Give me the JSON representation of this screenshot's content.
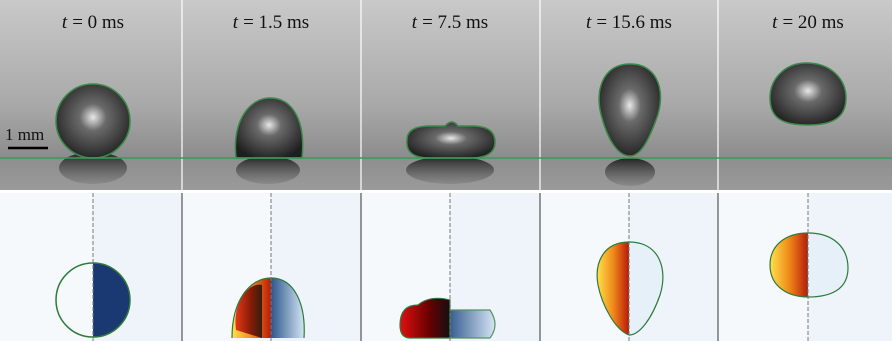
{
  "variable": "t",
  "times": [
    "= 0 ms",
    "= 1.5 ms",
    "= 7.5 ms",
    "= 15.6 ms",
    "= 20 ms"
  ],
  "scale_bar": "1 mm"
}
